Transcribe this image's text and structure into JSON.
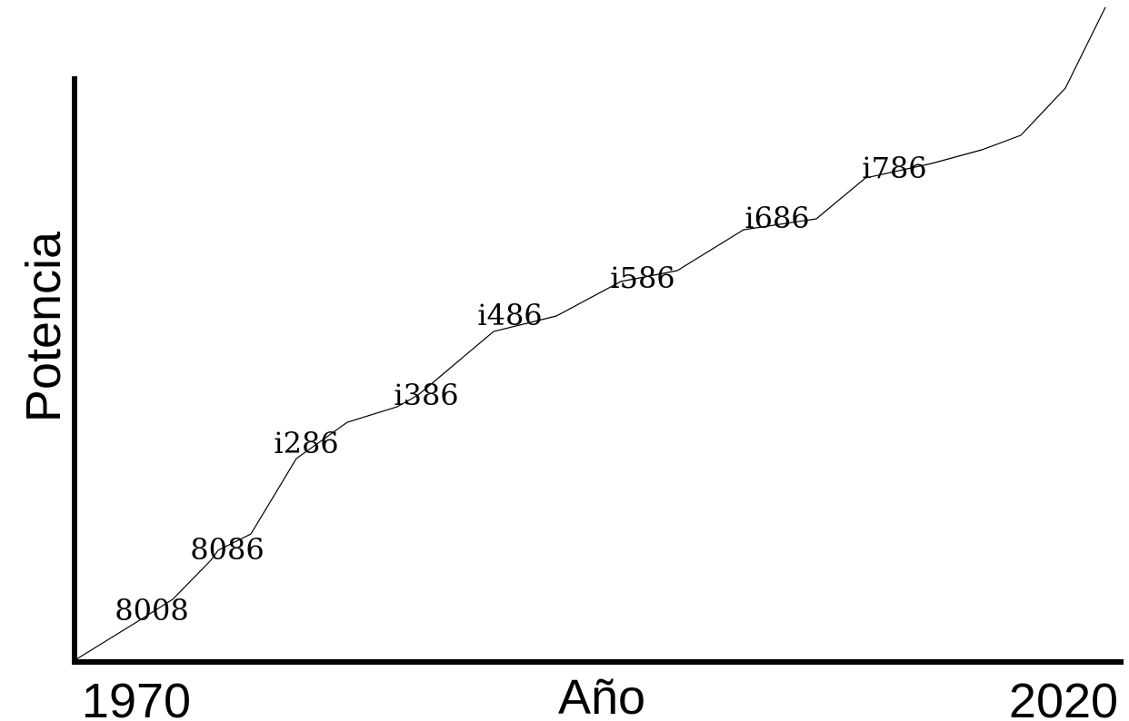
{
  "chart_data": {
    "type": "line",
    "xlabel": "Año",
    "ylabel": "Potencia",
    "x_tick_labels": [
      "1970",
      "2020"
    ],
    "xlim": [
      1970,
      2020
    ],
    "y_ticks_shown": false,
    "grid": false,
    "legend": "none",
    "point_labels": [
      "8008",
      "8086",
      "i286",
      "i386",
      "i486",
      "i586",
      "i686",
      "i786"
    ],
    "colors": {
      "line": "#000000",
      "axes": "#000000",
      "background": "#ffffff"
    }
  }
}
